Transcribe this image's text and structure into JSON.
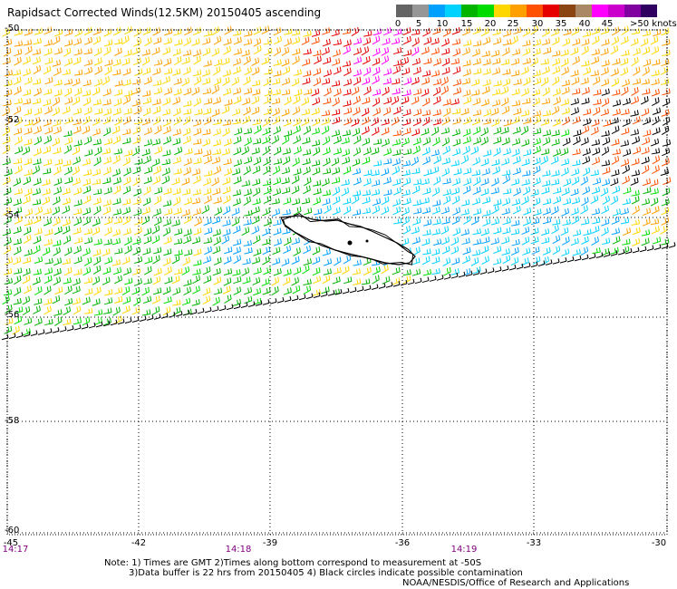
{
  "title": "Rapidsact Corrected Winds(12.5KM) 20150405 ascending",
  "legend": {
    "ticks": [
      "0",
      "5",
      "10",
      "15",
      "20",
      "25",
      "30",
      "35",
      "40",
      "45",
      ">50 knots"
    ],
    "colors": [
      "#646464",
      "#969696",
      "#00a0ff",
      "#00d2ff",
      "#00b400",
      "#00dc00",
      "#ffd700",
      "#ffa000",
      "#ff5000",
      "#e60000",
      "#8b4513",
      "#aa8866",
      "#ff00ff",
      "#cc00cc",
      "#8000a0",
      "#300060"
    ]
  },
  "axes": {
    "lat_labels": [
      "-50",
      "-52",
      "-54",
      "-56",
      "-58",
      "-60"
    ],
    "lon_labels": [
      "-45",
      "-42",
      "-39",
      "-36",
      "-33",
      "-30"
    ]
  },
  "times": [
    "14:17",
    "14:18",
    "14:19"
  ],
  "notes": {
    "line1": "Note: 1) Times are GMT 2)Times along bottom correspond to measurement at -50S",
    "line2": "3)Data buffer is 22 hrs from 20150405 4) Black circles indicate possible contamination",
    "credit": "NOAA/NESDIS/Office of Research and Applications"
  }
}
